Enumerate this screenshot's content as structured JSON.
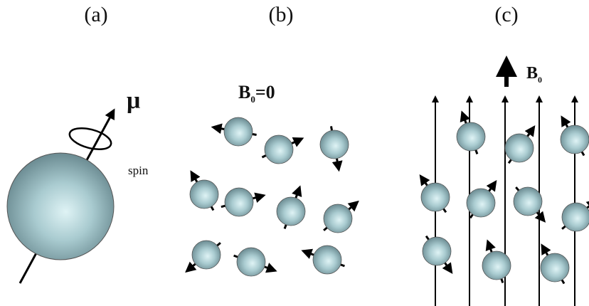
{
  "panels": {
    "a": "(a)",
    "b": "(b)",
    "c": "(c)"
  },
  "panel_a": {
    "moment": "μ",
    "spin": "spin"
  },
  "panel_b": {
    "field": {
      "symbol": "B",
      "subscript": "0",
      "equals": "=0"
    }
  },
  "panel_c": {
    "field": {
      "symbol": "B",
      "subscript": "0"
    }
  }
}
